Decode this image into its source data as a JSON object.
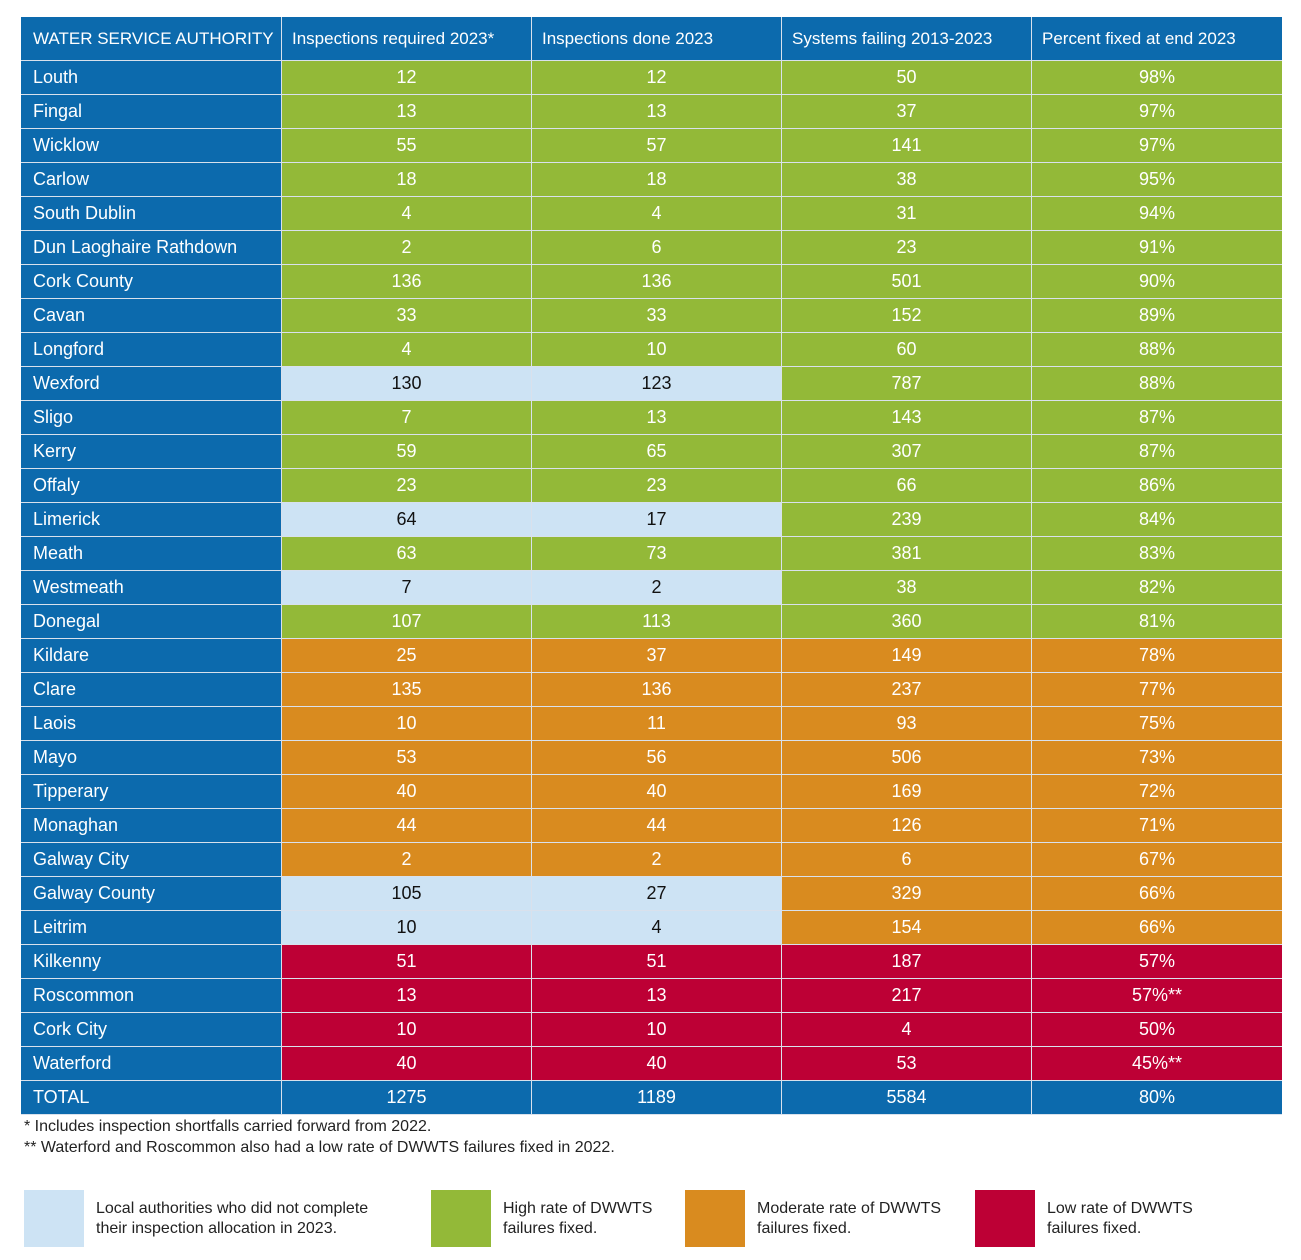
{
  "headers": [
    "WATER SERVICE AUTHORITY",
    "Inspections required 2023*",
    "Inspections done 2023",
    "Systems failing 2013-2023",
    "Percent fixed at end 2023"
  ],
  "rows": [
    {
      "name": "Louth",
      "req": "12",
      "done": "12",
      "failing": "50",
      "pct": "98%",
      "rate": "green",
      "shortfall": false
    },
    {
      "name": "Fingal",
      "req": "13",
      "done": "13",
      "failing": "37",
      "pct": "97%",
      "rate": "green",
      "shortfall": false
    },
    {
      "name": "Wicklow",
      "req": "55",
      "done": "57",
      "failing": "141",
      "pct": "97%",
      "rate": "green",
      "shortfall": false
    },
    {
      "name": "Carlow",
      "req": "18",
      "done": "18",
      "failing": "38",
      "pct": "95%",
      "rate": "green",
      "shortfall": false
    },
    {
      "name": "South Dublin",
      "req": "4",
      "done": "4",
      "failing": "31",
      "pct": "94%",
      "rate": "green",
      "shortfall": false
    },
    {
      "name": "Dun Laoghaire Rathdown",
      "req": "2",
      "done": "6",
      "failing": "23",
      "pct": "91%",
      "rate": "green",
      "shortfall": false
    },
    {
      "name": "Cork County",
      "req": "136",
      "done": "136",
      "failing": "501",
      "pct": "90%",
      "rate": "green",
      "shortfall": false
    },
    {
      "name": "Cavan",
      "req": "33",
      "done": "33",
      "failing": "152",
      "pct": "89%",
      "rate": "green",
      "shortfall": false
    },
    {
      "name": "Longford",
      "req": "4",
      "done": "10",
      "failing": "60",
      "pct": "88%",
      "rate": "green",
      "shortfall": false
    },
    {
      "name": "Wexford",
      "req": "130",
      "done": "123",
      "failing": "787",
      "pct": "88%",
      "rate": "green",
      "shortfall": true
    },
    {
      "name": "Sligo",
      "req": "7",
      "done": "13",
      "failing": "143",
      "pct": "87%",
      "rate": "green",
      "shortfall": false
    },
    {
      "name": "Kerry",
      "req": "59",
      "done": "65",
      "failing": "307",
      "pct": "87%",
      "rate": "green",
      "shortfall": false
    },
    {
      "name": "Offaly",
      "req": "23",
      "done": "23",
      "failing": "66",
      "pct": "86%",
      "rate": "green",
      "shortfall": false
    },
    {
      "name": "Limerick",
      "req": "64",
      "done": "17",
      "failing": "239",
      "pct": "84%",
      "rate": "green",
      "shortfall": true
    },
    {
      "name": "Meath",
      "req": "63",
      "done": "73",
      "failing": "381",
      "pct": "83%",
      "rate": "green",
      "shortfall": false
    },
    {
      "name": "Westmeath",
      "req": "7",
      "done": "2",
      "failing": "38",
      "pct": "82%",
      "rate": "green",
      "shortfall": true
    },
    {
      "name": "Donegal",
      "req": "107",
      "done": "113",
      "failing": "360",
      "pct": "81%",
      "rate": "green",
      "shortfall": false
    },
    {
      "name": "Kildare",
      "req": "25",
      "done": "37",
      "failing": "149",
      "pct": "78%",
      "rate": "orange",
      "shortfall": false
    },
    {
      "name": "Clare",
      "req": "135",
      "done": "136",
      "failing": "237",
      "pct": "77%",
      "rate": "orange",
      "shortfall": false
    },
    {
      "name": "Laois",
      "req": "10",
      "done": "11",
      "failing": "93",
      "pct": "75%",
      "rate": "orange",
      "shortfall": false
    },
    {
      "name": "Mayo",
      "req": "53",
      "done": "56",
      "failing": "506",
      "pct": "73%",
      "rate": "orange",
      "shortfall": false
    },
    {
      "name": "Tipperary",
      "req": "40",
      "done": "40",
      "failing": "169",
      "pct": "72%",
      "rate": "orange",
      "shortfall": false
    },
    {
      "name": "Monaghan",
      "req": "44",
      "done": "44",
      "failing": "126",
      "pct": "71%",
      "rate": "orange",
      "shortfall": false
    },
    {
      "name": "Galway City",
      "req": "2",
      "done": "2",
      "failing": "6",
      "pct": "67%",
      "rate": "orange",
      "shortfall": false
    },
    {
      "name": "Galway County",
      "req": "105",
      "done": "27",
      "failing": "329",
      "pct": "66%",
      "rate": "orange",
      "shortfall": true
    },
    {
      "name": "Leitrim",
      "req": "10",
      "done": "4",
      "failing": "154",
      "pct": "66%",
      "rate": "orange",
      "shortfall": true
    },
    {
      "name": "Kilkenny",
      "req": "51",
      "done": "51",
      "failing": "187",
      "pct": "57%",
      "rate": "red",
      "shortfall": false
    },
    {
      "name": "Roscommon",
      "req": "13",
      "done": "13",
      "failing": "217",
      "pct": "57%**",
      "rate": "red",
      "shortfall": false
    },
    {
      "name": "Cork City",
      "req": "10",
      "done": "10",
      "failing": "4",
      "pct": "50%",
      "rate": "red",
      "shortfall": false
    },
    {
      "name": "Waterford",
      "req": "40",
      "done": "40",
      "failing": "53",
      "pct": "45%**",
      "rate": "red",
      "shortfall": false
    }
  ],
  "total": {
    "name": "TOTAL",
    "req": "1275",
    "done": "1189",
    "failing": "5584",
    "pct": "80%"
  },
  "footnotes": [
    "* Includes inspection shortfalls carried forward from 2022.",
    "** Waterford and Roscommon also had a low rate of DWWTS failures fixed in 2022."
  ],
  "legend": [
    {
      "line1": "Local authorities who did not complete",
      "line2": "their inspection allocation in 2023.",
      "color": "#cde3f4"
    },
    {
      "line1": "High rate of DWWTS",
      "line2": "failures fixed.",
      "color": "#93b938"
    },
    {
      "line1": "Moderate rate of DWWTS",
      "line2": "failures fixed.",
      "color": "#d98b1f"
    },
    {
      "line1": "Low rate of DWWTS",
      "line2": "failures fixed.",
      "color": "#bd0035"
    }
  ],
  "colors": {
    "header": "#0c6aad",
    "green": "#93b938",
    "orange": "#d98b1f",
    "red": "#bd0035",
    "shortfall": "#cde3f4"
  }
}
